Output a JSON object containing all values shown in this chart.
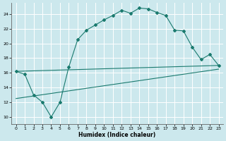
{
  "xlabel": "Humidex (Indice chaleur)",
  "background_color": "#cce8ed",
  "grid_color": "#ffffff",
  "line_color": "#1a7a6e",
  "xlim": [
    -0.5,
    23.5
  ],
  "ylim": [
    9,
    25.5
  ],
  "xticks": [
    0,
    1,
    2,
    3,
    4,
    5,
    6,
    7,
    8,
    9,
    10,
    11,
    12,
    13,
    14,
    15,
    16,
    17,
    18,
    19,
    20,
    21,
    22,
    23
  ],
  "yticks": [
    10,
    12,
    14,
    16,
    18,
    20,
    22,
    24
  ],
  "curve1_x": [
    0,
    1,
    2,
    3,
    4,
    5,
    6,
    7,
    8,
    9,
    10,
    11,
    12,
    13,
    14,
    15,
    16,
    17,
    18,
    19,
    20,
    21,
    22,
    23
  ],
  "curve1_y": [
    16.2,
    15.8,
    13.0,
    12.0,
    10.0,
    12.0,
    16.8,
    20.5,
    21.8,
    22.5,
    23.2,
    23.8,
    24.5,
    24.1,
    24.8,
    24.7,
    24.2,
    23.8,
    21.8,
    21.7,
    19.5,
    17.8,
    18.5,
    17.0
  ],
  "line2_x": [
    0,
    23
  ],
  "line2_y": [
    16.2,
    17.0
  ],
  "line3_x": [
    0,
    23
  ],
  "line3_y": [
    12.5,
    16.5
  ]
}
